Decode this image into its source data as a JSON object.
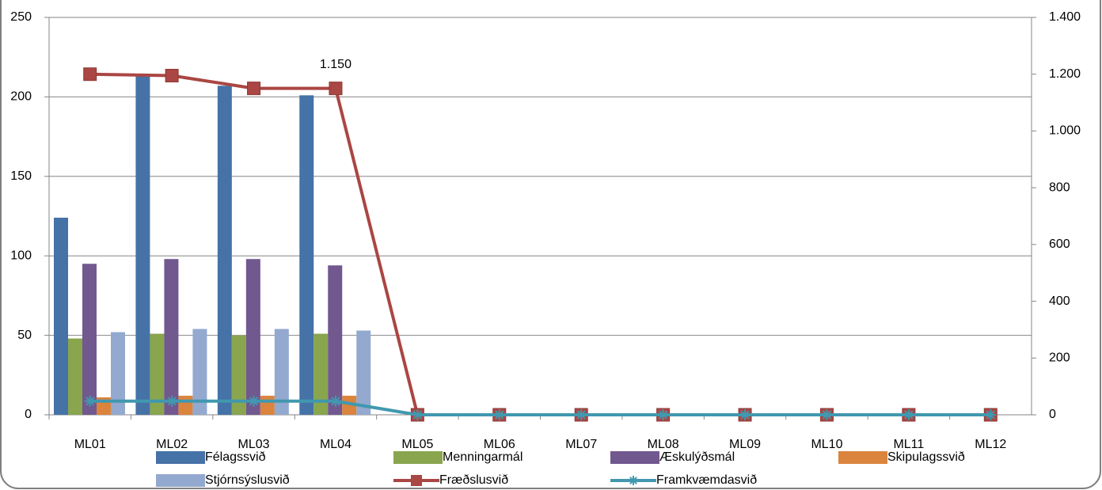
{
  "chart_data": {
    "type": "bar-line",
    "categories": [
      "ML01",
      "ML02",
      "ML03",
      "ML04",
      "ML05",
      "ML06",
      "ML07",
      "ML08",
      "ML09",
      "ML10",
      "ML11",
      "ML12"
    ],
    "series": [
      {
        "name": "Félagssvið",
        "color": "#4572a7",
        "kind": "bar",
        "values": [
          124,
          213,
          207,
          201,
          0,
          0,
          0,
          0,
          0,
          0,
          0,
          0
        ]
      },
      {
        "name": "Menningarmál",
        "color": "#89a54e",
        "kind": "bar",
        "values": [
          48,
          51,
          50,
          51,
          0,
          0,
          0,
          0,
          0,
          0,
          0,
          0
        ]
      },
      {
        "name": "Æskulýðsmál",
        "color": "#71588f",
        "kind": "bar",
        "values": [
          95,
          98,
          98,
          94,
          0,
          0,
          0,
          0,
          0,
          0,
          0,
          0
        ]
      },
      {
        "name": "Skipulagssvið",
        "color": "#db843d",
        "kind": "bar",
        "values": [
          11,
          12,
          12,
          12,
          0,
          0,
          0,
          0,
          0,
          0,
          0,
          0
        ]
      },
      {
        "name": "Stjórnsýslusvið",
        "color": "#93a9cf",
        "kind": "bar",
        "values": [
          52,
          54,
          54,
          53,
          0,
          0,
          0,
          0,
          0,
          0,
          0,
          0
        ]
      },
      {
        "name": "Fræðslusvið",
        "color": "#aa4643",
        "kind": "line",
        "marker": "square",
        "axis": "y2",
        "values": [
          1200,
          1195,
          1150,
          1150,
          0,
          0,
          0,
          0,
          0,
          0,
          0,
          0
        ],
        "value_labels": [
          null,
          null,
          null,
          "1.150",
          null,
          null,
          null,
          null,
          null,
          null,
          null,
          null
        ]
      },
      {
        "name": "Framkvæmdasvið",
        "color": "#4198af",
        "kind": "line",
        "marker": "star",
        "axis": "y2",
        "values": [
          48,
          48,
          48,
          48,
          0,
          0,
          0,
          0,
          0,
          0,
          0,
          0
        ]
      }
    ],
    "ylim": [
      0,
      250
    ],
    "yticks": [
      0,
      50,
      100,
      150,
      200,
      250
    ],
    "y2lim": [
      0,
      1400
    ],
    "y2ticks": [
      0,
      200,
      400,
      600,
      800,
      {
        "value": 1000,
        "label": "1.000"
      },
      {
        "value": 1200,
        "label": "1.200"
      },
      {
        "value": 1400,
        "label": "1.400"
      }
    ],
    "grid": true
  }
}
